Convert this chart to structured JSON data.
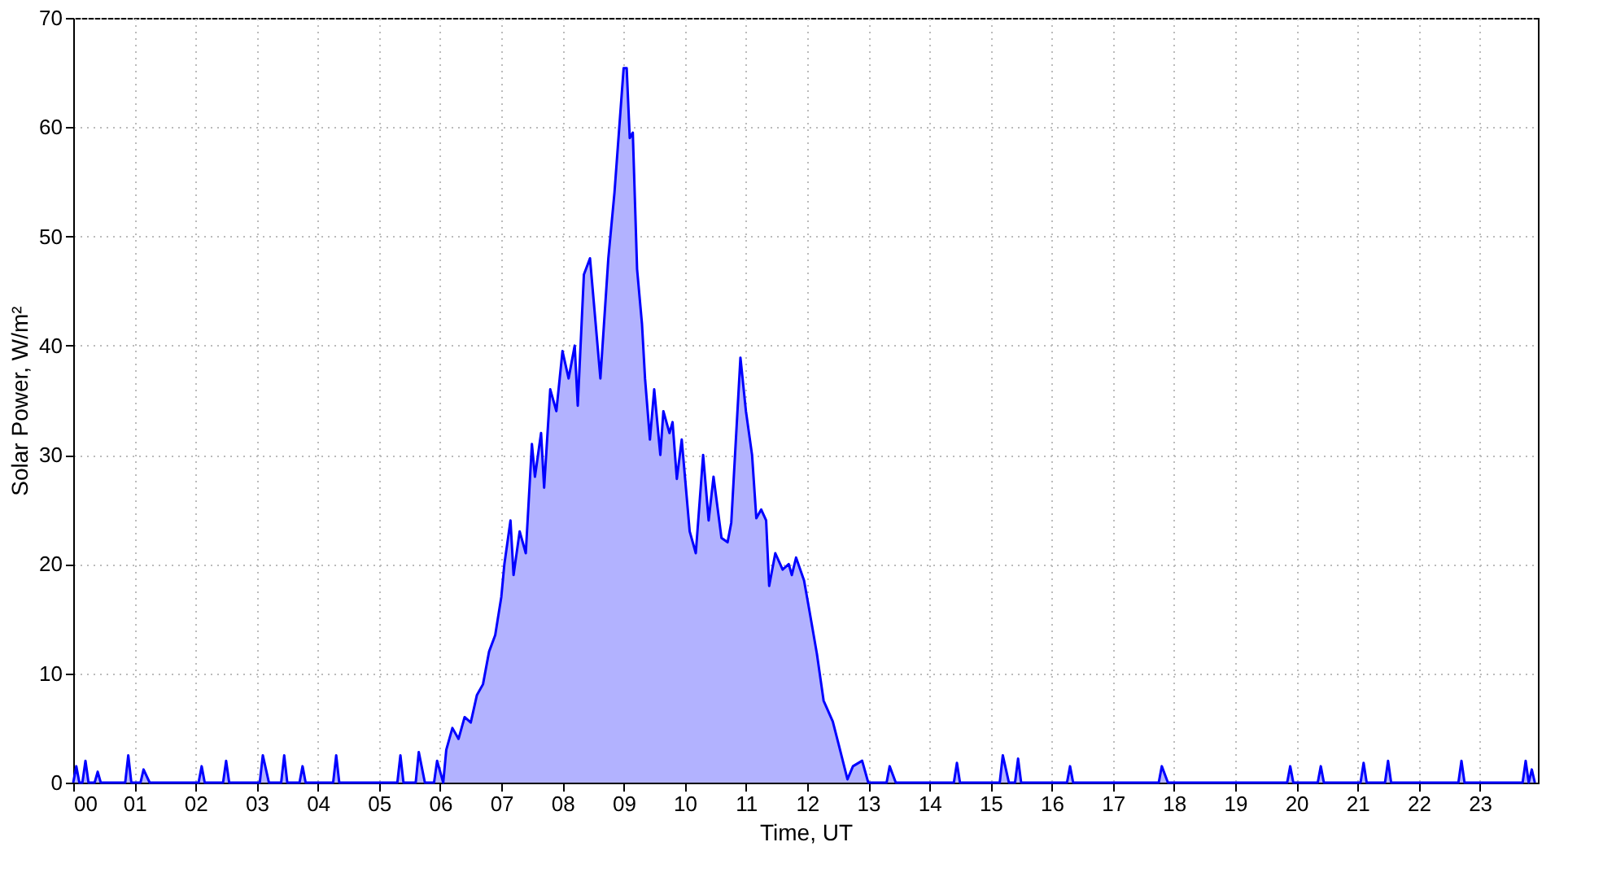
{
  "chart_data": {
    "type": "area",
    "xlabel": "Time, UT",
    "ylabel": "Solar Power, W/m²",
    "xlim": [
      0,
      23.95
    ],
    "ylim": [
      0,
      70
    ],
    "xticks": [
      {
        "value": 0,
        "label": "00"
      },
      {
        "value": 1,
        "label": "01"
      },
      {
        "value": 2,
        "label": "02"
      },
      {
        "value": 3,
        "label": "03"
      },
      {
        "value": 4,
        "label": "04"
      },
      {
        "value": 5,
        "label": "05"
      },
      {
        "value": 6,
        "label": "06"
      },
      {
        "value": 7,
        "label": "07"
      },
      {
        "value": 8,
        "label": "08"
      },
      {
        "value": 9,
        "label": "09"
      },
      {
        "value": 10,
        "label": "10"
      },
      {
        "value": 11,
        "label": "11"
      },
      {
        "value": 12,
        "label": "12"
      },
      {
        "value": 13,
        "label": "13"
      },
      {
        "value": 14,
        "label": "14"
      },
      {
        "value": 15,
        "label": "15"
      },
      {
        "value": 16,
        "label": "16"
      },
      {
        "value": 17,
        "label": "17"
      },
      {
        "value": 18,
        "label": "18"
      },
      {
        "value": 19,
        "label": "19"
      },
      {
        "value": 20,
        "label": "20"
      },
      {
        "value": 21,
        "label": "21"
      },
      {
        "value": 22,
        "label": "22"
      },
      {
        "value": 23,
        "label": "23"
      }
    ],
    "yticks": [
      0,
      10,
      20,
      30,
      40,
      50,
      60,
      70
    ],
    "grid": true,
    "line_style": "dotted",
    "series": [
      {
        "color": "#0000ff",
        "x": [
          0,
          0.05,
          0.1,
          0.15,
          0.2,
          0.25,
          0.35,
          0.4,
          0.45,
          0.85,
          0.9,
          0.95,
          1.1,
          1.15,
          1.25,
          2.05,
          2.1,
          2.15,
          2.45,
          2.5,
          2.55,
          3.05,
          3.1,
          3.2,
          3.4,
          3.45,
          3.5,
          3.7,
          3.75,
          3.8,
          4.25,
          4.3,
          4.35,
          5.3,
          5.35,
          5.4,
          5.6,
          5.65,
          5.75,
          5.9,
          5.95,
          6.05,
          6.1,
          6.2,
          6.3,
          6.4,
          6.5,
          6.6,
          6.7,
          6.8,
          6.9,
          7.0,
          7.05,
          7.15,
          7.2,
          7.3,
          7.4,
          7.5,
          7.55,
          7.65,
          7.7,
          7.8,
          7.9,
          8.0,
          8.1,
          8.2,
          8.25,
          8.35,
          8.45,
          8.62,
          8.75,
          8.85,
          9.0,
          9.05,
          9.1,
          9.15,
          9.22,
          9.3,
          9.35,
          9.43,
          9.5,
          9.6,
          9.65,
          9.75,
          9.8,
          9.87,
          9.95,
          10.08,
          10.18,
          10.3,
          10.39,
          10.47,
          10.6,
          10.7,
          10.76,
          10.91,
          11.0,
          11.1,
          11.17,
          11.25,
          11.33,
          11.38,
          11.48,
          11.6,
          11.7,
          11.75,
          11.82,
          11.95,
          12.03,
          12.16,
          12.27,
          12.42,
          12.53,
          12.66,
          12.75,
          12.9,
          13.0,
          13.3,
          13.35,
          13.45,
          14.4,
          14.45,
          14.5,
          15.15,
          15.2,
          15.3,
          15.4,
          15.45,
          15.5,
          16.25,
          16.3,
          16.35,
          17.75,
          17.8,
          17.9,
          19.85,
          19.9,
          19.95,
          20.35,
          20.4,
          20.45,
          21.05,
          21.1,
          21.15,
          21.45,
          21.5,
          21.55,
          22.65,
          22.7,
          22.75,
          23.7,
          23.75,
          23.8,
          23.85,
          23.9
        ],
        "values": [
          0,
          1.5,
          0,
          0,
          2,
          0,
          0,
          1,
          0,
          0,
          2.5,
          0,
          0,
          1.2,
          0,
          0,
          1.5,
          0,
          0,
          2,
          0,
          0,
          2.5,
          0,
          0,
          2.5,
          0,
          0,
          1.5,
          0,
          0,
          2.5,
          0,
          0,
          2.5,
          0,
          0,
          2.8,
          0,
          0,
          2,
          0,
          3,
          5,
          4,
          6,
          5.5,
          8,
          9,
          12,
          13.5,
          17,
          20,
          24,
          19,
          23,
          21,
          31,
          28,
          32,
          27,
          36,
          34,
          39.5,
          37,
          40,
          34.5,
          46.5,
          48,
          37,
          48,
          54,
          65.4,
          65.4,
          59,
          59.5,
          47,
          42,
          37,
          31.4,
          36,
          30,
          34,
          32,
          33,
          27.8,
          31.4,
          23,
          21,
          30,
          24,
          28,
          22.4,
          22,
          23.8,
          38.9,
          34,
          30,
          24.2,
          25,
          24,
          18,
          21,
          19.5,
          20,
          19,
          20.6,
          18.5,
          16,
          11.8,
          7.5,
          5.6,
          3.2,
          0.3,
          1.5,
          2,
          0,
          0,
          1.5,
          0,
          0,
          1.8,
          0,
          0,
          2.5,
          0,
          0,
          2.2,
          0,
          0,
          1.5,
          0,
          0,
          1.5,
          0,
          0,
          1.5,
          0,
          0,
          1.5,
          0,
          0,
          1.8,
          0,
          0,
          2,
          0,
          0,
          2,
          0,
          0,
          2,
          0,
          1.2,
          0
        ]
      }
    ]
  }
}
